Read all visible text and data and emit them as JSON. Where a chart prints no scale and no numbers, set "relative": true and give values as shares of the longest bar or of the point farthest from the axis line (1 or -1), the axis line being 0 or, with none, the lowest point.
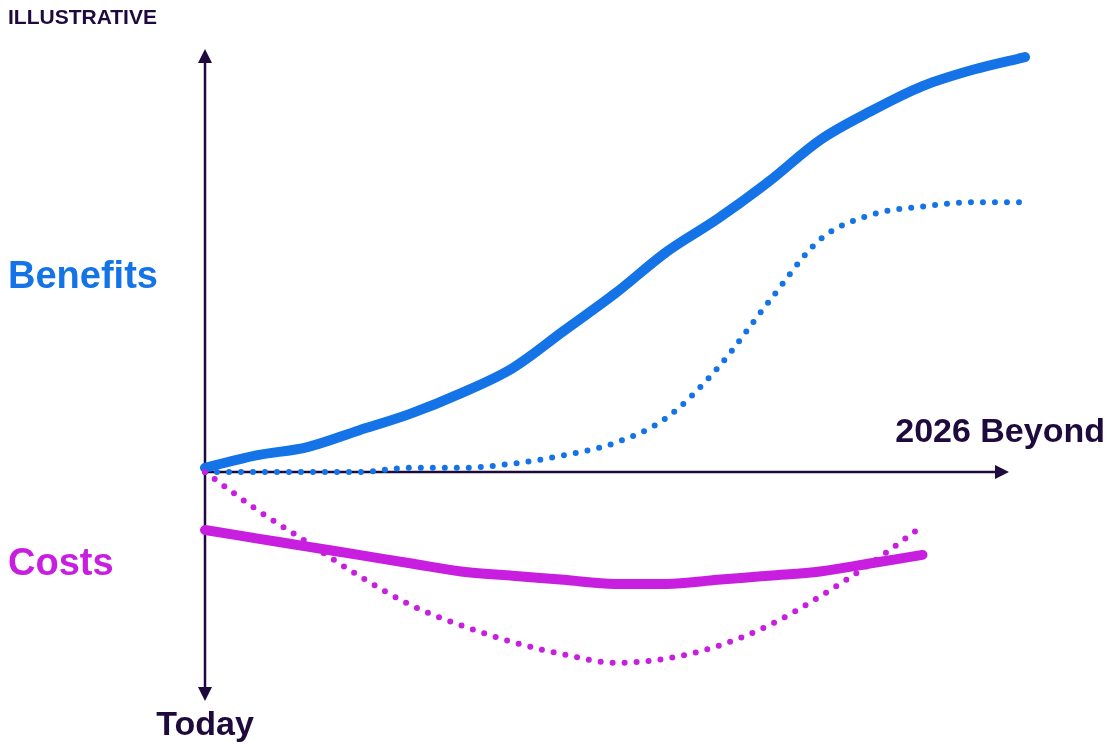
{
  "chart_data": {
    "type": "line",
    "title": "ILLUSTRATIVE",
    "xlabel": "2026 Beyond",
    "annotations": [
      "Today"
    ],
    "relative": true,
    "legend": false,
    "marker": "none",
    "categories": [
      null,
      null,
      null,
      null,
      null,
      null,
      null,
      null,
      null,
      null,
      null,
      null,
      null,
      null,
      null,
      null,
      null
    ],
    "series": [
      {
        "name": "Benefits",
        "color": "#1473e6",
        "line_style": "solid",
        "values": [
          0.01,
          0.04,
          0.06,
          0.1,
          0.14,
          0.19,
          0.25,
          0.34,
          0.43,
          0.53,
          0.61,
          0.7,
          0.8,
          0.87,
          0.93,
          0.97,
          1.0
        ]
      },
      {
        "color": "#1473e6",
        "line_style": "dotted",
        "values": [
          0,
          0,
          0,
          0,
          0.01,
          0.01,
          0.02,
          0.04,
          0.07,
          0.13,
          0.25,
          0.41,
          0.56,
          0.62,
          0.64,
          0.65,
          0.65
        ]
      },
      {
        "name": "Costs",
        "color": "#c81ee0",
        "line_style": "solid",
        "values": [
          -0.14,
          -0.16,
          -0.18,
          -0.2,
          -0.22,
          -0.24,
          -0.25,
          -0.26,
          -0.27,
          -0.27,
          -0.26,
          -0.25,
          -0.24,
          -0.22,
          -0.2,
          null,
          null
        ]
      },
      {
        "color": "#c81ee0",
        "line_style": "dotted",
        "values": [
          0,
          -0.09,
          -0.17,
          -0.25,
          -0.32,
          -0.37,
          -0.41,
          -0.44,
          -0.46,
          -0.45,
          -0.42,
          -0.37,
          -0.3,
          -0.22,
          -0.13,
          null,
          null
        ]
      }
    ]
  }
}
